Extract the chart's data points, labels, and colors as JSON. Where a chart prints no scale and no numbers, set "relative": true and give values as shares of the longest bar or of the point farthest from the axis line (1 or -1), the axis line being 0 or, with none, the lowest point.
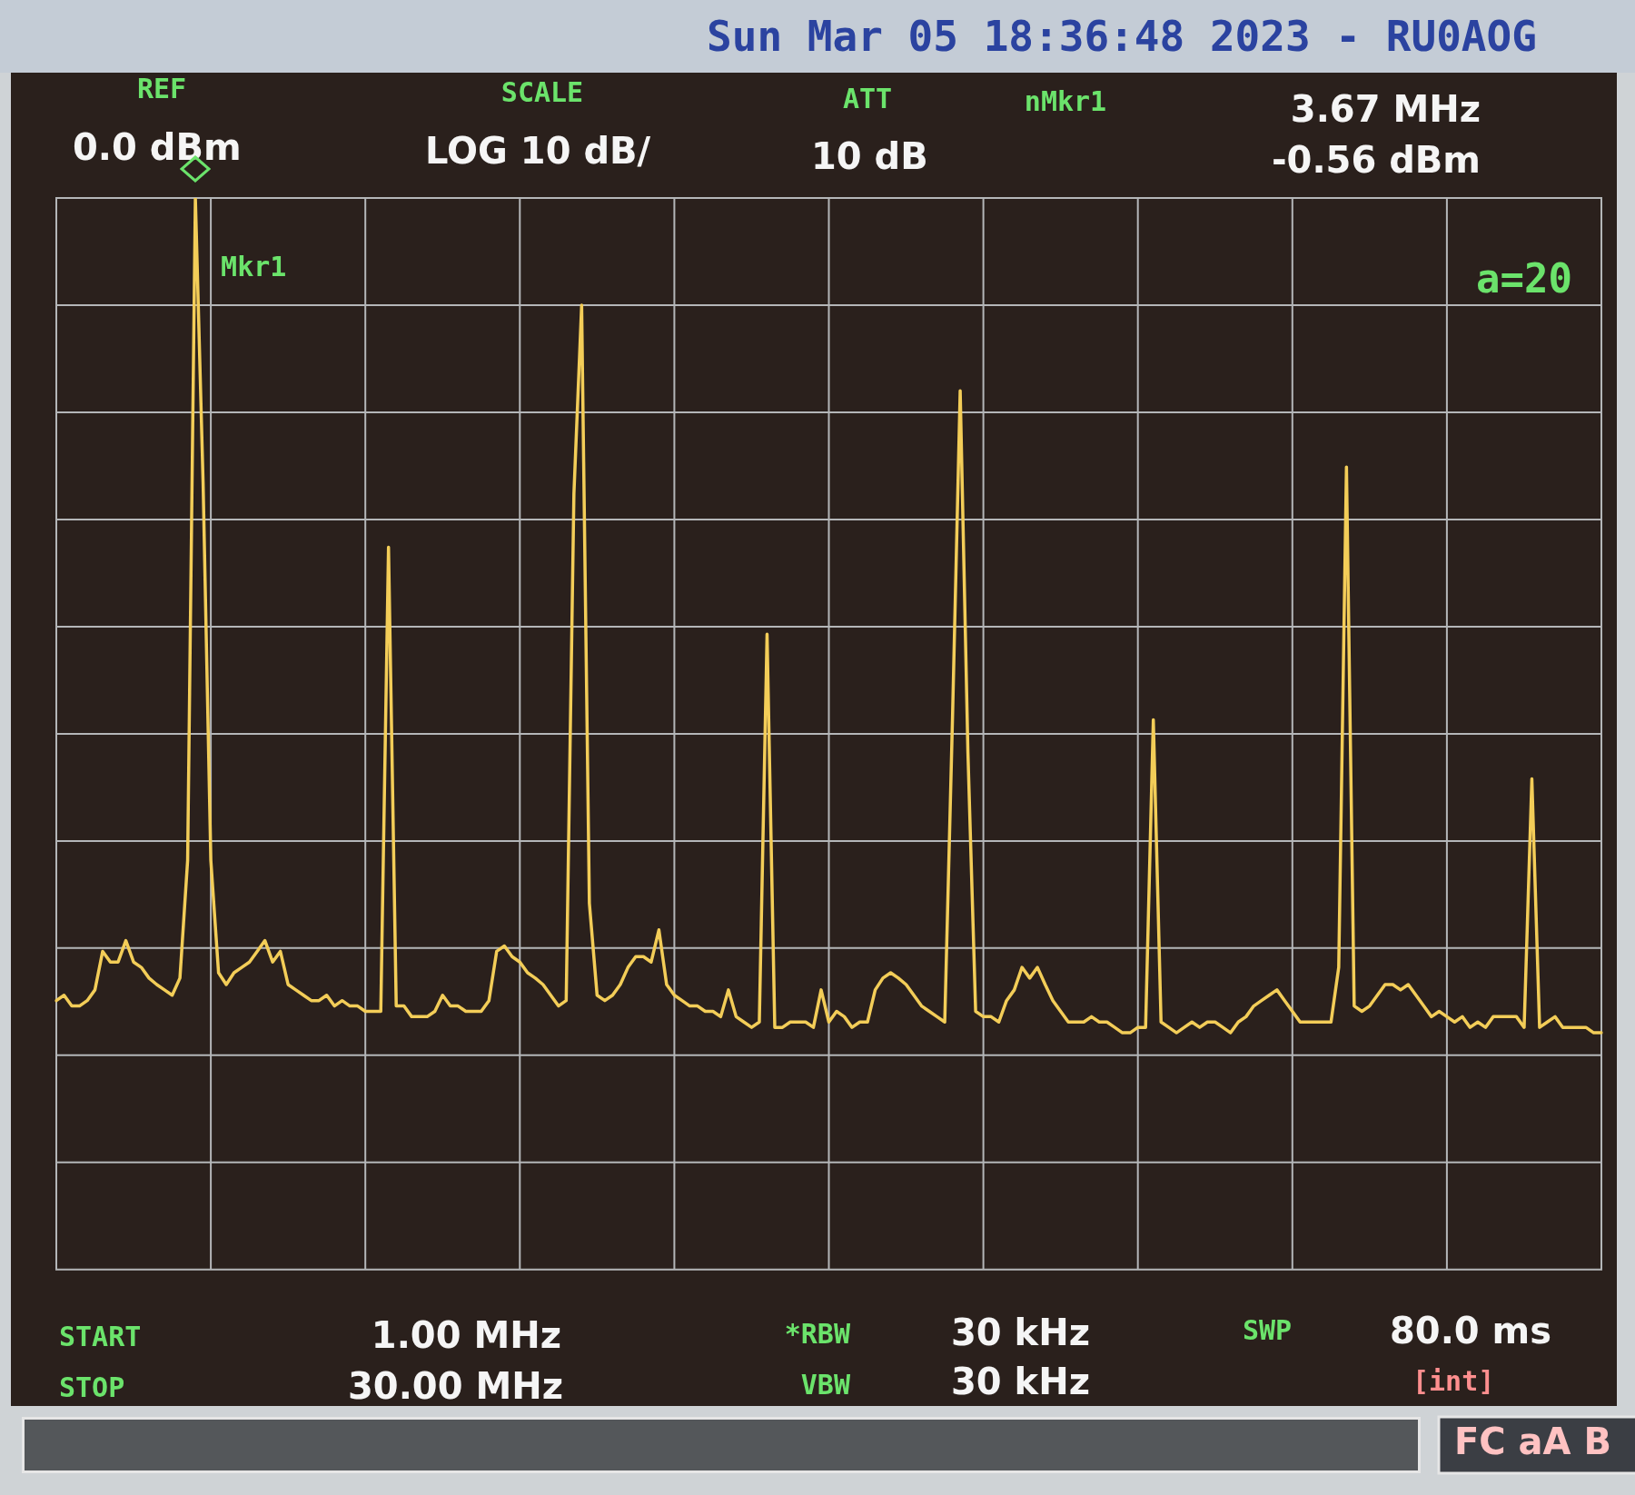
{
  "chart_data": {
    "type": "line",
    "title": "Sun Mar 05 18:36:48 2023 - RU0AOG",
    "relative": true,
    "categories": [
      null,
      null,
      null,
      null,
      null,
      null,
      null,
      null,
      null,
      null,
      null,
      null,
      null,
      null,
      null,
      null,
      null,
      null,
      null,
      null,
      null,
      null,
      null,
      null,
      null,
      null,
      null,
      null,
      null,
      null,
      null,
      null,
      null,
      null,
      null,
      null,
      null,
      null,
      null,
      null,
      null,
      null,
      null,
      null,
      null,
      null,
      null,
      null,
      null,
      null,
      null,
      null,
      null,
      null,
      null,
      null,
      null,
      null,
      null,
      null,
      null,
      null,
      null,
      null,
      null,
      null,
      null,
      null,
      null,
      null,
      null,
      null,
      null,
      null,
      null,
      null,
      null,
      null,
      null,
      null,
      null,
      null,
      null,
      null,
      null,
      null,
      null,
      null,
      null,
      null,
      null,
      null,
      null,
      null,
      null,
      null,
      null,
      null,
      null,
      null,
      null,
      null,
      null,
      null,
      null,
      null,
      null,
      null,
      null,
      null,
      null,
      null,
      null,
      null,
      null,
      null,
      null,
      null,
      null,
      null,
      null,
      null,
      null,
      null,
      null,
      null,
      null,
      null,
      null,
      null,
      null,
      null,
      null,
      null,
      null,
      null,
      null,
      null,
      null,
      null,
      null,
      null,
      null,
      null,
      null,
      null,
      null,
      null,
      null,
      null,
      null,
      null,
      null,
      null,
      null,
      null,
      null,
      null,
      null,
      null,
      null,
      null,
      null,
      null,
      null,
      null,
      null,
      null,
      null,
      null,
      null,
      null,
      null,
      null,
      null,
      null,
      null,
      null,
      null,
      null,
      null,
      null,
      null,
      null,
      null,
      null,
      null,
      null,
      null,
      null,
      null,
      null,
      null,
      null,
      null,
      null,
      null,
      null,
      null,
      null,
      null
    ],
    "values": [
      0.251,
      0.256,
      0.246,
      0.246,
      0.251,
      0.261,
      0.297,
      0.287,
      0.287,
      0.307,
      0.287,
      0.282,
      0.272,
      0.266,
      0.261,
      0.256,
      0.272,
      0.382,
      1,
      0.734,
      0.382,
      0.277,
      0.266,
      0.277,
      0.282,
      0.287,
      0.297,
      0.307,
      0.287,
      0.297,
      0.266,
      0.261,
      0.256,
      0.251,
      0.251,
      0.256,
      0.246,
      0.251,
      0.246,
      0.246,
      0.241,
      0.241,
      0.241,
      0.674,
      0.246,
      0.246,
      0.236,
      0.236,
      0.236,
      0.241,
      0.256,
      0.246,
      0.246,
      0.241,
      0.241,
      0.241,
      0.251,
      0.297,
      0.302,
      0.292,
      0.287,
      0.277,
      0.272,
      0.266,
      0.256,
      0.246,
      0.251,
      0.724,
      0.9,
      0.342,
      0.256,
      0.251,
      0.256,
      0.266,
      0.282,
      0.292,
      0.292,
      0.287,
      0.317,
      0.266,
      0.256,
      0.251,
      0.246,
      0.246,
      0.241,
      0.241,
      0.236,
      0.261,
      0.236,
      0.231,
      0.226,
      0.231,
      0.593,
      0.226,
      0.226,
      0.231,
      0.231,
      0.231,
      0.226,
      0.261,
      0.231,
      0.241,
      0.236,
      0.226,
      0.231,
      0.231,
      0.261,
      0.272,
      0.277,
      0.272,
      0.266,
      0.256,
      0.246,
      0.241,
      0.236,
      0.231,
      0.513,
      0.82,
      0.483,
      0.241,
      0.236,
      0.236,
      0.231,
      0.251,
      0.261,
      0.282,
      0.272,
      0.282,
      0.266,
      0.251,
      0.241,
      0.231,
      0.231,
      0.231,
      0.236,
      0.231,
      0.231,
      0.226,
      0.221,
      0.221,
      0.226,
      0.226,
      0.513,
      0.231,
      0.226,
      0.221,
      0.226,
      0.231,
      0.226,
      0.231,
      0.231,
      0.226,
      0.221,
      0.231,
      0.236,
      0.246,
      0.251,
      0.256,
      0.261,
      0.251,
      0.241,
      0.231,
      0.231,
      0.231,
      0.231,
      0.231,
      0.282,
      0.749,
      0.246,
      0.241,
      0.246,
      0.256,
      0.266,
      0.266,
      0.261,
      0.266,
      0.256,
      0.246,
      0.236,
      0.241,
      0.236,
      0.231,
      0.236,
      0.226,
      0.231,
      0.226,
      0.236,
      0.236,
      0.236,
      0.236,
      0.226,
      0.458,
      0.226,
      0.231,
      0.236,
      0.226,
      0.226,
      0.226,
      0.226,
      0.221,
      0.221
    ],
    "color": "#f3cd58",
    "grid": true,
    "annotations": [
      "REF",
      "0.0 dBm",
      "SCALE",
      "LOG 10 dB/",
      "ATT",
      "10 dB",
      "nMkr1",
      "3.67 MHz",
      "-0.56 dBm",
      "Mkr1",
      "a=20",
      "START",
      "1.00 MHz",
      "STOP",
      "30.00 MHz",
      "*RBW",
      "30 kHz",
      "VBW",
      "30 kHz",
      "SWP",
      "80.0 ms",
      "[int]",
      "FC aA B"
    ]
  }
}
